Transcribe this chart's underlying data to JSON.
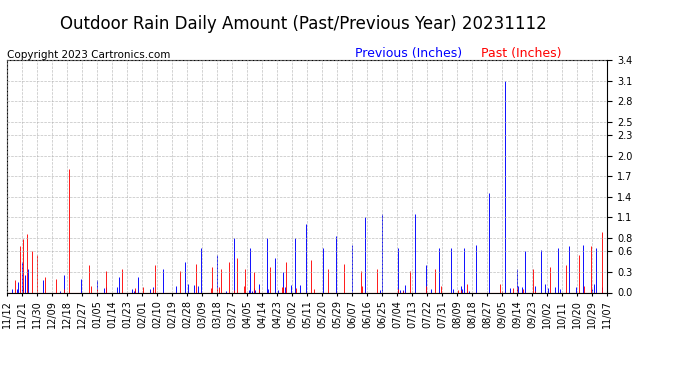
{
  "title": "Outdoor Rain Daily Amount (Past/Previous Year) 20231112",
  "copyright": "Copyright 2023 Cartronics.com",
  "legend_previous": "Previous (Inches)",
  "legend_past": "Past (Inches)",
  "previous_color": "blue",
  "past_color": "red",
  "yticks": [
    0.0,
    0.3,
    0.6,
    0.8,
    1.1,
    1.4,
    1.7,
    2.0,
    2.3,
    2.5,
    2.8,
    3.1,
    3.4
  ],
  "ymin": 0.0,
  "ymax": 3.4,
  "background_color": "#ffffff",
  "grid_color": "#b0b0b0",
  "title_fontsize": 12,
  "copyright_fontsize": 7.5,
  "legend_fontsize": 9,
  "tick_fontsize": 7,
  "xtick_labels": [
    "11/12",
    "11/21",
    "11/30",
    "12/09",
    "12/18",
    "12/27",
    "01/05",
    "01/14",
    "01/23",
    "02/01",
    "02/10",
    "02/19",
    "02/28",
    "03/09",
    "03/18",
    "03/27",
    "04/05",
    "04/14",
    "04/23",
    "05/02",
    "05/11",
    "05/20",
    "05/29",
    "06/07",
    "06/16",
    "06/25",
    "07/04",
    "07/13",
    "07/22",
    "07/31",
    "08/09",
    "08/18",
    "08/27",
    "09/05",
    "09/14",
    "09/23",
    "10/02",
    "10/11",
    "10/20",
    "10/29",
    "11/07"
  ],
  "n_points": 366,
  "blue_spikes": {
    "positions": [
      7,
      9,
      11,
      13,
      22,
      35,
      45,
      55,
      68,
      80,
      95,
      108,
      118,
      128,
      138,
      148,
      158,
      163,
      168,
      175,
      182,
      192,
      200,
      210,
      218,
      228,
      238,
      248,
      255,
      263,
      270,
      278,
      285,
      293,
      303,
      310,
      315,
      325,
      335,
      342,
      350,
      358
    ],
    "heights": [
      0.15,
      0.45,
      0.25,
      0.35,
      0.18,
      0.25,
      0.2,
      0.18,
      0.22,
      0.22,
      0.35,
      0.45,
      0.65,
      0.55,
      0.8,
      0.65,
      0.8,
      0.5,
      0.3,
      0.8,
      1.0,
      0.65,
      0.82,
      0.7,
      1.1,
      1.15,
      0.65,
      1.15,
      0.4,
      0.65,
      0.65,
      0.65,
      0.7,
      1.45,
      3.1,
      0.35,
      0.6,
      0.62,
      0.65,
      0.68,
      0.7,
      0.65
    ]
  },
  "red_spikes": {
    "positions": [
      5,
      8,
      10,
      12,
      15,
      18,
      23,
      30,
      38,
      50,
      60,
      70,
      90,
      105,
      115,
      125,
      130,
      135,
      140,
      145,
      150,
      160,
      170,
      185,
      195,
      205,
      215,
      225,
      245,
      260,
      280,
      300,
      320,
      330,
      340,
      348,
      355,
      362
    ],
    "heights": [
      0.18,
      0.68,
      0.78,
      0.85,
      0.6,
      0.55,
      0.22,
      0.2,
      1.8,
      0.4,
      0.32,
      0.35,
      0.4,
      0.32,
      0.42,
      0.38,
      0.35,
      0.45,
      0.5,
      0.35,
      0.3,
      0.38,
      0.45,
      0.48,
      0.35,
      0.42,
      0.32,
      0.35,
      0.32,
      0.35,
      0.12,
      0.12,
      0.35,
      0.38,
      0.4,
      0.55,
      0.68,
      0.88
    ]
  }
}
